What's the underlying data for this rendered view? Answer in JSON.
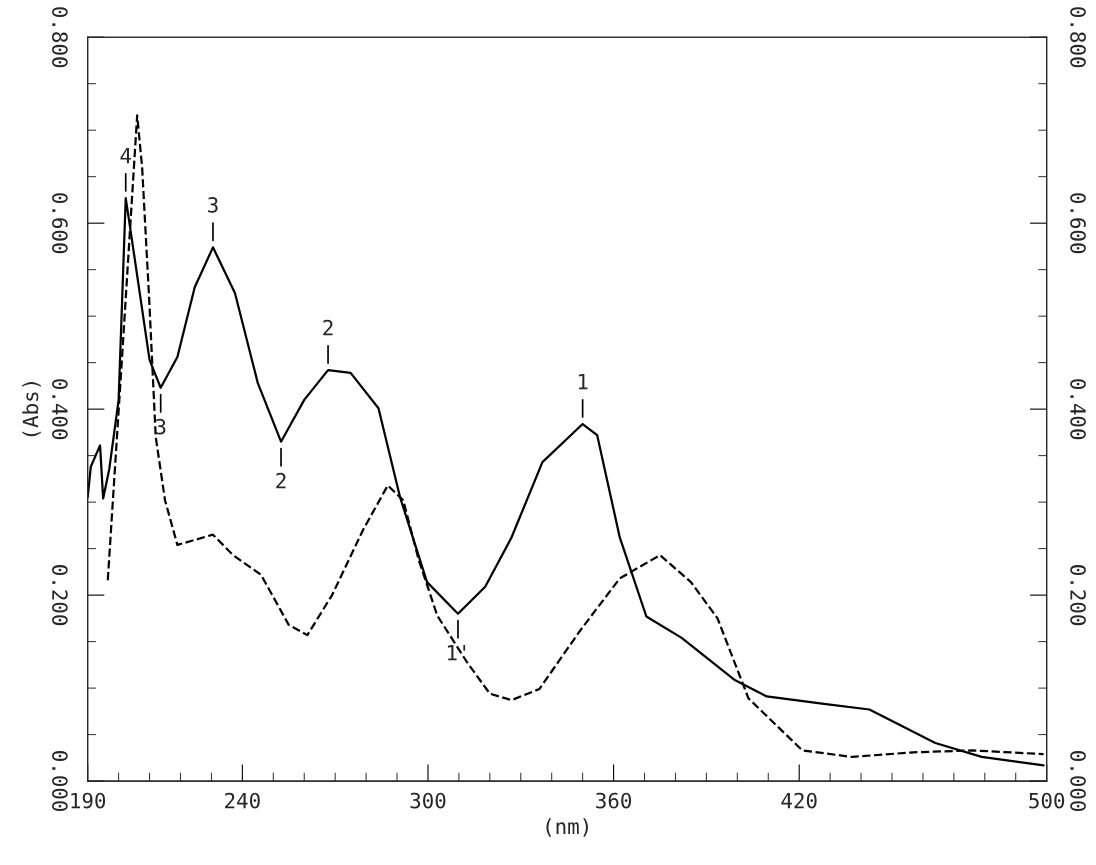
{
  "chart_data": {
    "type": "line",
    "xlabel": "(nm)",
    "ylabel": "(Abs)",
    "xlim": [
      190,
      500
    ],
    "ylim": [
      0,
      0.8
    ],
    "y2lim": [
      0,
      0.8
    ],
    "xticks": [
      190,
      {
        "value": 200,
        "label": null
      },
      {
        "value": 210,
        "label": null
      },
      {
        "value": 220,
        "label": null
      },
      {
        "value": 230,
        "label": null
      },
      240,
      {
        "value": 250,
        "label": null
      },
      {
        "value": 260,
        "label": null
      },
      {
        "value": 270,
        "label": null
      },
      {
        "value": 280,
        "label": null
      },
      {
        "value": 290,
        "label": null
      },
      300,
      {
        "value": 310,
        "label": null
      },
      {
        "value": 320,
        "label": null
      },
      {
        "value": 330,
        "label": null
      },
      {
        "value": 340,
        "label": null
      },
      {
        "value": 350,
        "label": null
      },
      360,
      {
        "value": 370,
        "label": null
      },
      {
        "value": 380,
        "label": null
      },
      {
        "value": 390,
        "label": null
      },
      {
        "value": 400,
        "label": null
      },
      {
        "value": 410,
        "label": null
      },
      420,
      {
        "value": 430,
        "label": null
      },
      {
        "value": 440,
        "label": null
      },
      {
        "value": 450,
        "label": null
      },
      {
        "value": 460,
        "label": null
      },
      {
        "value": 470,
        "label": null
      },
      {
        "value": 480,
        "label": null
      },
      {
        "value": 490,
        "label": null
      },
      500
    ],
    "yticks": [
      {
        "value": 0,
        "label": "0.000"
      },
      {
        "value": 0.05,
        "label": null
      },
      {
        "value": 0.1,
        "label": null
      },
      {
        "value": 0.15,
        "label": null
      },
      {
        "value": 0.2,
        "label": "0.200"
      },
      {
        "value": 0.25,
        "label": null
      },
      {
        "value": 0.3,
        "label": null
      },
      {
        "value": 0.35,
        "label": null
      },
      {
        "value": 0.4,
        "label": "0.400"
      },
      {
        "value": 0.45,
        "label": null
      },
      {
        "value": 0.5,
        "label": null
      },
      {
        "value": 0.55,
        "label": null
      },
      {
        "value": 0.6,
        "label": "0.600"
      },
      {
        "value": 0.65,
        "label": null
      },
      {
        "value": 0.7,
        "label": null
      },
      {
        "value": 0.75,
        "label": null
      },
      {
        "value": 0.8,
        "label": "0.800"
      }
    ],
    "y2ticks": [
      {
        "value": 0,
        "label": "0.000"
      },
      {
        "value": 0.05,
        "label": null
      },
      {
        "value": 0.1,
        "label": null
      },
      {
        "value": 0.15,
        "label": null
      },
      {
        "value": 0.2,
        "label": "0.200"
      },
      {
        "value": 0.25,
        "label": null
      },
      {
        "value": 0.3,
        "label": null
      },
      {
        "value": 0.35,
        "label": null
      },
      {
        "value": 0.4,
        "label": "0.400"
      },
      {
        "value": 0.45,
        "label": null
      },
      {
        "value": 0.5,
        "label": null
      },
      {
        "value": 0.55,
        "label": null
      },
      {
        "value": 0.6,
        "label": "0.600"
      },
      {
        "value": 0.65,
        "label": null
      },
      {
        "value": 0.7,
        "label": null
      },
      {
        "value": 0.75,
        "label": null
      },
      {
        "value": 0.8,
        "label": "0.800"
      }
    ],
    "grid": false,
    "legend": false,
    "marker": "none",
    "series": [
      {
        "color": "#000000",
        "line_style": "solid",
        "x": [
          190,
          191,
          194,
          195,
          197,
          200,
          202.3,
          204,
          210,
          213.6,
          219,
          224.6,
          230.5,
          237.6,
          245,
          252.5,
          260,
          267.7,
          275,
          284,
          291,
          299.7,
          309.7,
          318.5,
          327,
          337,
          350,
          354.7,
          362,
          370.6,
          382,
          399,
          409.5,
          428,
          442.7,
          464,
          479,
          499
        ],
        "values": [
          0.305,
          0.338,
          0.361,
          0.304,
          0.336,
          0.41,
          0.627,
          0.589,
          0.453,
          0.423,
          0.456,
          0.531,
          0.574,
          0.525,
          0.428,
          0.365,
          0.41,
          0.442,
          0.439,
          0.401,
          0.305,
          0.214,
          0.18,
          0.209,
          0.262,
          0.343,
          0.384,
          0.372,
          0.262,
          0.177,
          0.154,
          0.109,
          0.091,
          0.083,
          0.077,
          0.041,
          0.026,
          0.017
        ]
      },
      {
        "color": "#000000",
        "line_style": "dashed",
        "x": [
          196.5,
          201,
          206,
          207.6,
          209.9,
          212,
          215,
          219,
          230.5,
          237,
          246,
          255,
          261,
          269,
          279,
          287,
          292,
          297,
          303,
          312.6,
          320,
          327,
          336,
          349,
          362,
          375,
          385,
          393.6,
          403.6,
          421,
          437,
          457,
          476,
          499
        ],
        "values": [
          0.216,
          0.45,
          0.716,
          0.66,
          0.517,
          0.37,
          0.302,
          0.254,
          0.265,
          0.243,
          0.222,
          0.168,
          0.157,
          0.2,
          0.27,
          0.318,
          0.302,
          0.238,
          0.178,
          0.128,
          0.094,
          0.087,
          0.099,
          0.161,
          0.218,
          0.243,
          0.214,
          0.175,
          0.089,
          0.033,
          0.026,
          0.031,
          0.033,
          0.029
        ]
      }
    ],
    "annotations": [
      {
        "text": "4",
        "x": 202.3,
        "y": 0.627
      },
      {
        "text": "3",
        "x": 230.5,
        "y": 0.574
      },
      {
        "text": "2",
        "x": 267.7,
        "y": 0.442
      },
      {
        "text": "1",
        "x": 350,
        "y": 0.384
      },
      {
        "text": "3",
        "x": 213.6,
        "y": 0.423
      },
      {
        "text": "2",
        "x": 252.5,
        "y": 0.365
      },
      {
        "text": "1'",
        "x": 309.7,
        "y": 0.18
      }
    ]
  }
}
